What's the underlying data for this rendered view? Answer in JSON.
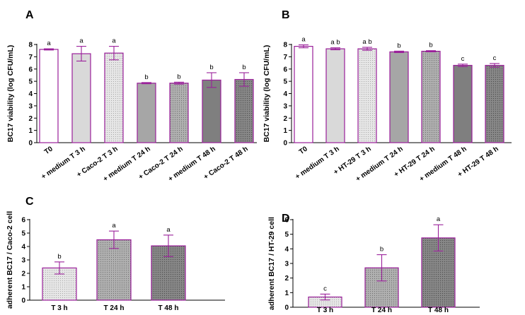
{
  "colors": {
    "outline": "#9a1f9a",
    "fills": [
      "#ffffff",
      "#d9d9d9",
      "#d4d4d4",
      "#a6a6a6",
      "#a3a3a3",
      "#7f7f7f",
      "#7d7d7d"
    ]
  },
  "chart_data": [
    {
      "panel": "A",
      "type": "bar",
      "ylabel": "BC17 viability (log CFU/mL)",
      "ylim": [
        0,
        8
      ],
      "yticks": [
        0,
        1,
        2,
        3,
        4,
        5,
        6,
        7,
        8
      ],
      "categories": [
        "T0",
        "+ medium T 3 h",
        "+ Caco-2 T 3 h",
        "+ medium T 24 h",
        "+ Caco-2 T 24 h",
        "+ medium T 48 h",
        "+ Caco-2 T 48 h"
      ],
      "values": [
        7.6,
        7.25,
        7.3,
        4.85,
        4.85,
        5.1,
        5.15
      ],
      "errors": [
        0.05,
        0.6,
        0.55,
        0.05,
        0.08,
        0.6,
        0.55
      ],
      "letters": [
        "a",
        "a",
        "a",
        "b",
        "b",
        "b",
        "b"
      ],
      "fills": [
        "#ffffff",
        "#d9d9d9",
        "#d4d4d4",
        "#a6a6a6",
        "#a3a3a3",
        "#7f7f7f",
        "#7d7d7d"
      ]
    },
    {
      "panel": "B",
      "type": "bar",
      "ylabel": "BC17 viability (log CFU/mL)",
      "ylim": [
        0,
        8
      ],
      "yticks": [
        0,
        1,
        2,
        3,
        4,
        5,
        6,
        7,
        8
      ],
      "categories": [
        "T0",
        "+ medium T 3 h",
        "+ HT-29 T 3 h",
        "+ medium T 24 h",
        "+ HT-29 T 24 h",
        "+ medium T 48 h",
        "+ HT-29 T 48 h"
      ],
      "values": [
        7.85,
        7.65,
        7.65,
        7.4,
        7.45,
        6.3,
        6.3
      ],
      "errors": [
        0.12,
        0.08,
        0.12,
        0.06,
        0.05,
        0.1,
        0.15
      ],
      "letters": [
        "a",
        "a b",
        "a b",
        "b",
        "b",
        "c",
        "c"
      ],
      "fills": [
        "#ffffff",
        "#d9d9d9",
        "#d4d4d4",
        "#a6a6a6",
        "#a3a3a3",
        "#7f7f7f",
        "#7d7d7d"
      ]
    },
    {
      "panel": "C",
      "type": "bar",
      "ylabel": "adherent BC17 / Caco-2 cell",
      "ylim": [
        0,
        6
      ],
      "yticks": [
        0,
        1,
        2,
        3,
        4,
        5,
        6
      ],
      "categories": [
        "T 3 h",
        "T 24 h",
        "T 48 h"
      ],
      "values": [
        2.4,
        4.5,
        4.05
      ],
      "errors": [
        0.45,
        0.65,
        0.8
      ],
      "letters": [
        "b",
        "a",
        "a"
      ],
      "fills": [
        "#d4d4d4",
        "#a3a3a3",
        "#7d7d7d"
      ]
    },
    {
      "panel": "D",
      "type": "bar",
      "ylabel": "adherent BC17 / HT-29 cell",
      "ylim": [
        0,
        6
      ],
      "yticks": [
        0,
        1,
        2,
        3,
        4,
        5,
        6
      ],
      "categories": [
        "T 3 h",
        "T 24 h",
        "T 48 h"
      ],
      "values": [
        0.7,
        2.7,
        4.75
      ],
      "errors": [
        0.2,
        0.9,
        0.9
      ],
      "letters": [
        "c",
        "b",
        "a"
      ],
      "fills": [
        "#d4d4d4",
        "#a3a3a3",
        "#7d7d7d"
      ]
    }
  ]
}
